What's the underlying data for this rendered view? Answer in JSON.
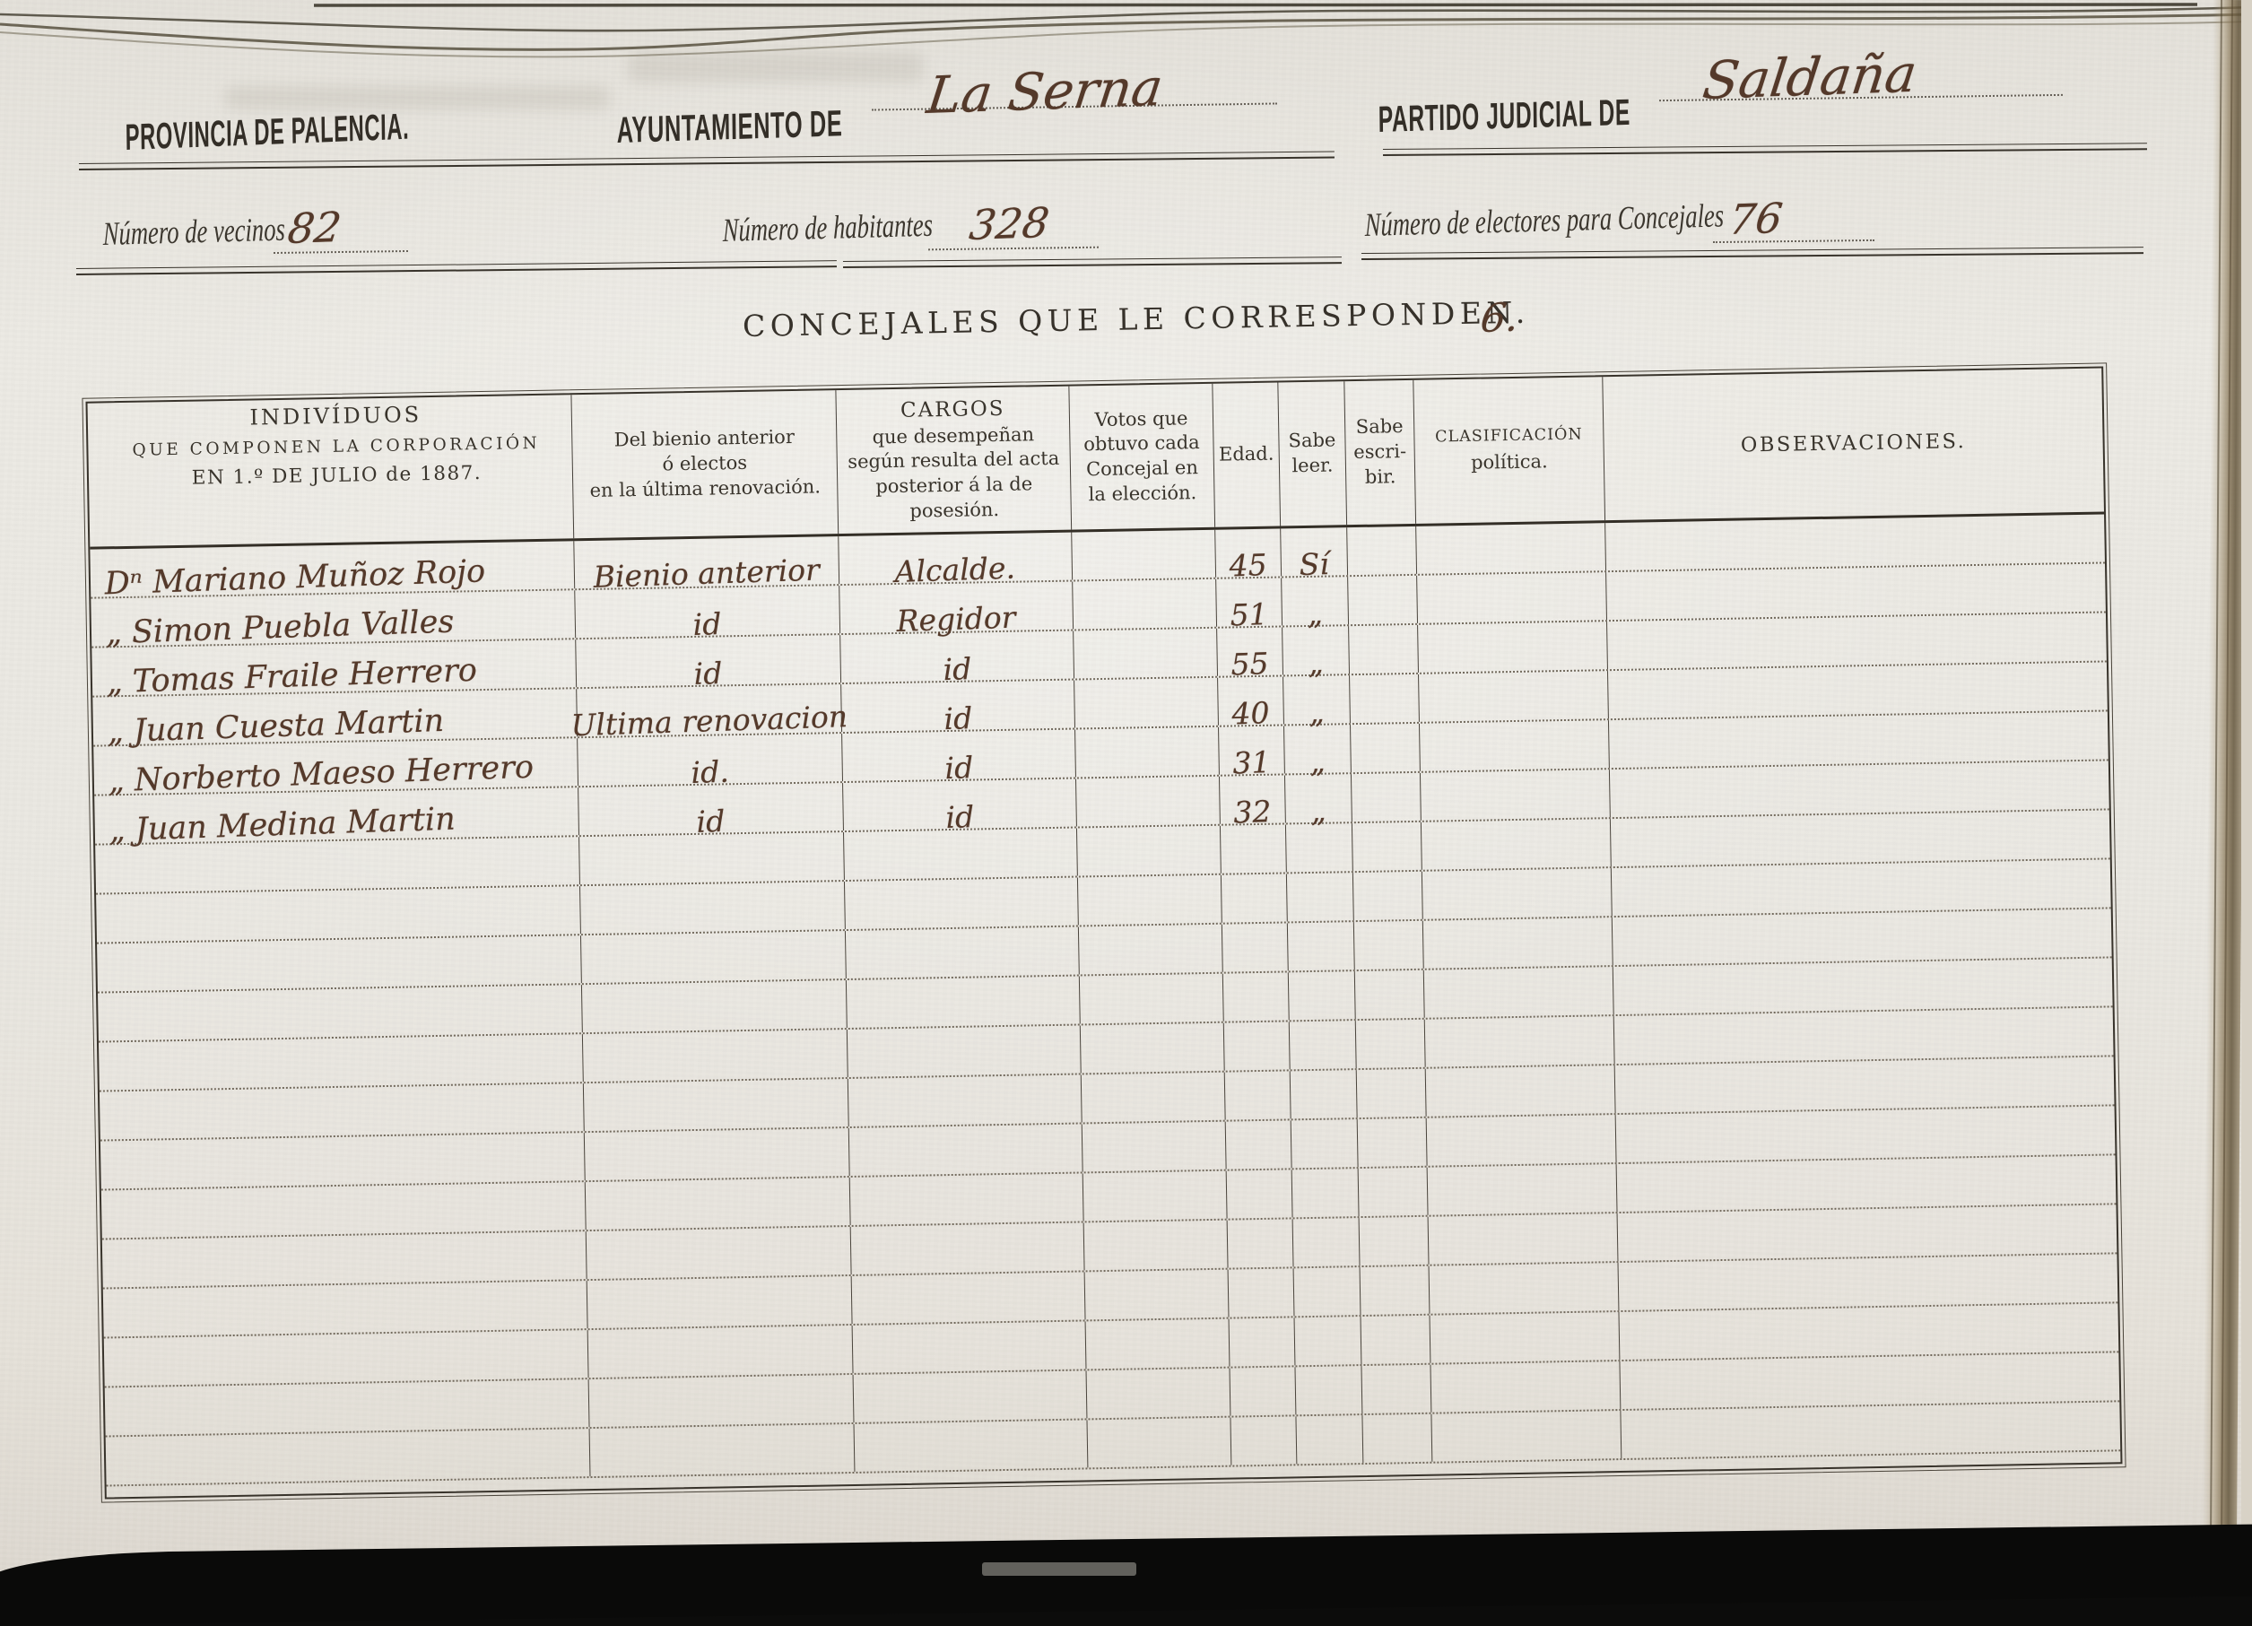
{
  "header": {
    "province": {
      "label": "PROVINCIA DE PALENCIA."
    },
    "municipality": {
      "label": "AYUNTAMIENTO DE",
      "value": "La Serna"
    },
    "district": {
      "label": "PARTIDO JUDICIAL DE",
      "value": "Saldaña"
    }
  },
  "stats": {
    "vecinos": {
      "label": "Número de vecinos",
      "value": "82"
    },
    "habitantes": {
      "label": "Número de habitantes",
      "value": "328"
    },
    "electores": {
      "label": "Número de electores para Concejales",
      "value": "76"
    }
  },
  "title": {
    "label": "CONCEJALES QUE LE CORRESPONDEN.",
    "value": "6."
  },
  "table": {
    "columns": [
      {
        "id": "name",
        "lines": [
          "INDIVÍDUOS",
          "QUE COMPONEN LA CORPORACIÓN",
          "EN 1.º DE JULIO de 1887."
        ]
      },
      {
        "id": "bienio",
        "lines": [
          "Del bienio anterior",
          "ó electos",
          "en la última renovación."
        ]
      },
      {
        "id": "cargo",
        "lines": [
          "CARGOS",
          "que desempeñan",
          "según resulta del acta",
          "posterior á la de",
          "posesión."
        ]
      },
      {
        "id": "votos",
        "lines": [
          "Votos que",
          "obtuvo cada",
          "Concejal en",
          "la elección."
        ]
      },
      {
        "id": "edad",
        "lines": [
          "Edad."
        ]
      },
      {
        "id": "lee",
        "lines": [
          "Sabe",
          "leer."
        ]
      },
      {
        "id": "escribe",
        "lines": [
          "Sabe",
          "escri-",
          "bir."
        ]
      },
      {
        "id": "clasificacion",
        "lines": [
          "CLASIFICACIÓN",
          "política."
        ]
      },
      {
        "id": "observaciones",
        "lines": [
          "OBSERVACIONES."
        ]
      }
    ],
    "rows": [
      {
        "name": "Dⁿ Mariano Muñoz Rojo",
        "bienio": "Bienio anterior",
        "cargo": "Alcalde.",
        "votos": "",
        "edad": "45",
        "lee": "Sí",
        "escribe": "",
        "clasificacion": "",
        "observaciones": ""
      },
      {
        "name": "„ Simon Puebla Valles",
        "bienio": "id",
        "cargo": "Regidor",
        "votos": "",
        "edad": "51",
        "lee": "„",
        "escribe": "",
        "clasificacion": "",
        "observaciones": ""
      },
      {
        "name": "„ Tomas Fraile Herrero",
        "bienio": "id",
        "cargo": "id",
        "votos": "",
        "edad": "55",
        "lee": "„",
        "escribe": "",
        "clasificacion": "",
        "observaciones": ""
      },
      {
        "name": "„ Juan Cuesta Martin",
        "bienio": "Ultima renovacion",
        "cargo": "id",
        "votos": "",
        "edad": "40",
        "lee": "„",
        "escribe": "",
        "clasificacion": "",
        "observaciones": ""
      },
      {
        "name": "„ Norberto Maeso Herrero",
        "bienio": "id.",
        "cargo": "id",
        "votos": "",
        "edad": "31",
        "lee": "„",
        "escribe": "",
        "clasificacion": "",
        "observaciones": ""
      },
      {
        "name": "„ Juan Medina Martin",
        "bienio": "id",
        "cargo": "id",
        "votos": "",
        "edad": "32",
        "lee": "„",
        "escribe": "",
        "clasificacion": "",
        "observaciones": ""
      }
    ],
    "empty_row_count": 13
  }
}
